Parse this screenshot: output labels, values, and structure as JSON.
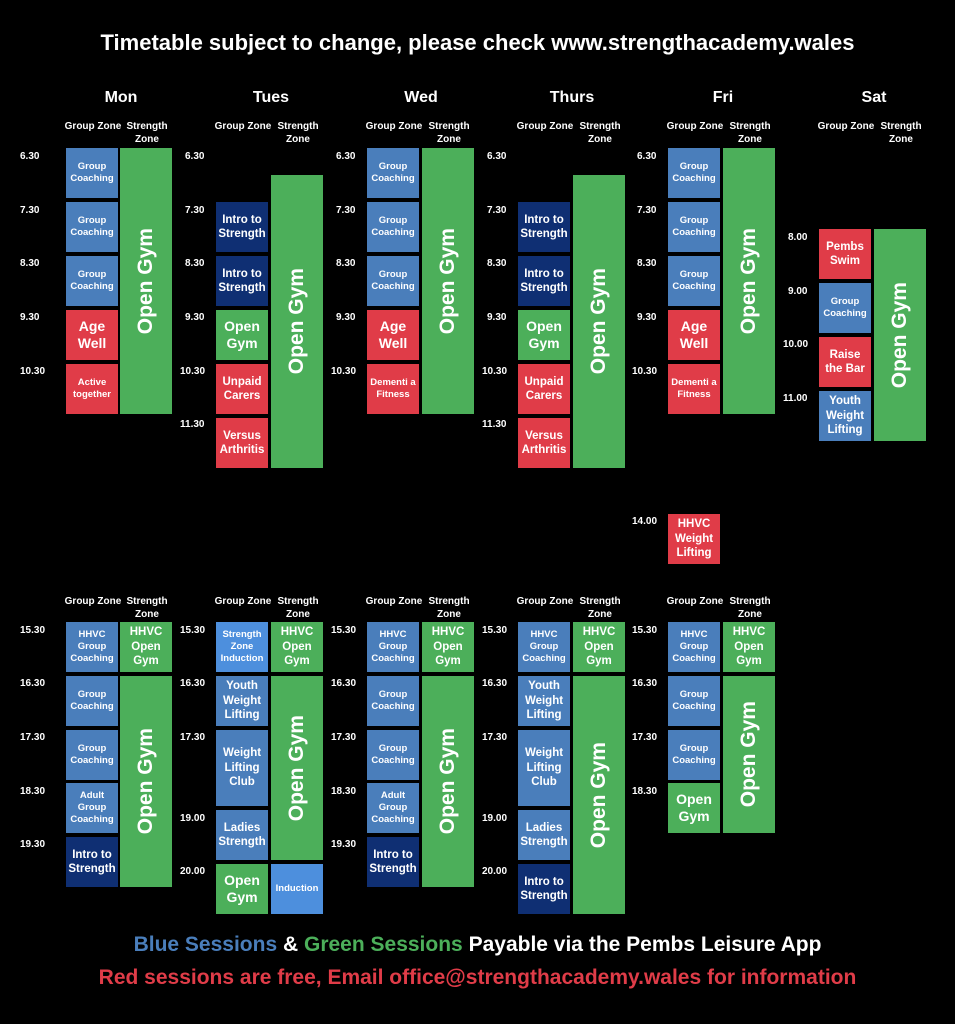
{
  "title": "Timetable subject to change, please check www.strengthacademy.wales",
  "colors": {
    "blue": "#4a7ebb",
    "navy": "#0f2f73",
    "lightblue": "#4d8fdd",
    "green": "#4caf5a",
    "red": "#e03c48",
    "background": "#000000"
  },
  "headers": {
    "group": "Group Zone",
    "strength": "Strength Zone"
  },
  "days": {
    "mon": "Mon",
    "tue": "Tues",
    "wed": "Wed",
    "thu": "Thurs",
    "fri": "Fri",
    "sat": "Sat"
  },
  "times": {
    "t0630": "6.30",
    "t0730": "7.30",
    "t0830": "8.30",
    "t0930": "9.30",
    "t1030": "10.30",
    "t1130": "11.30",
    "t0800": "8.00",
    "t0900": "9.00",
    "t1000": "10.00",
    "t1100": "11.00",
    "t1400": "14.00",
    "t1530": "15.30",
    "t1630": "16.30",
    "t1730": "17.30",
    "t1830": "18.30",
    "t1930": "19.30",
    "t1900": "19.00",
    "t2000": "20.00"
  },
  "sessions": {
    "group_coaching": "Group Coaching",
    "age_well": "Age Well",
    "active_together": "Active together",
    "open_gym": "Open Gym",
    "intro_strength": "Intro to Strength",
    "unpaid_carers": "Unpaid Carers",
    "versus_arthritis": "Versus Arthritis",
    "dementia_fitness": "Dementi a Fitness",
    "pembs_swim": "Pembs Swim",
    "raise_bar": "Raise the Bar",
    "youth_wl": "Youth Weight Lifting",
    "hhvc_wl": "HHVC Weight Lifting",
    "hhvc_gc": "HHVC Group Coaching",
    "hhvc_og": "HHVC Open Gym",
    "sz_induction": "Strength Zone Induction",
    "adult_gc": "Adult Group Coaching",
    "wl_club": "Weight Lifting Club",
    "ladies_strength": "Ladies Strength",
    "induction": "Induction"
  },
  "footer": {
    "blue_label": "Blue Sessions",
    "amp": "&",
    "green_label": "Green Sessions",
    "payable": "Payable via the Pembs Leisure App",
    "free_line": "Red sessions are free, Email office@strengthacademy.wales for information"
  }
}
